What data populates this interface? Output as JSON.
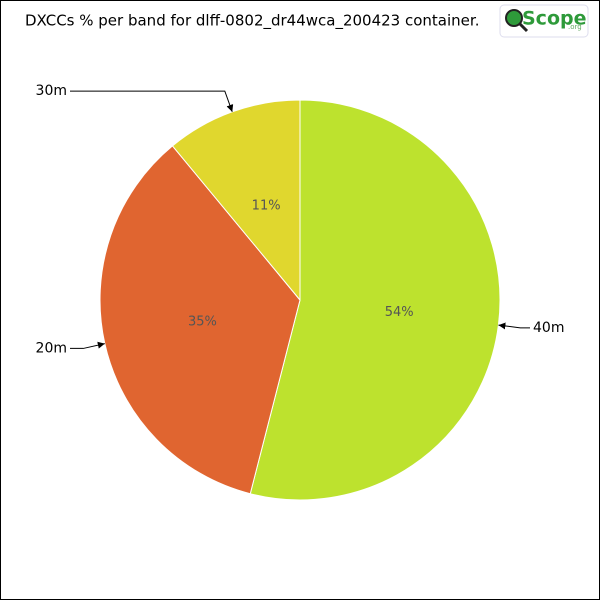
{
  "chart_data": {
    "type": "pie",
    "title": "DXCCs % per band for dlff-0802_dr44wca_200423 container.",
    "logo": {
      "text": "Scope",
      "suffix": ".org"
    },
    "categories": [
      "40m",
      "20m",
      "30m"
    ],
    "values": [
      54,
      35,
      11
    ],
    "value_labels": [
      "54%",
      "35%",
      "11%"
    ],
    "colors": [
      "#bde22e",
      "#e06530",
      "#e0d72e"
    ]
  }
}
